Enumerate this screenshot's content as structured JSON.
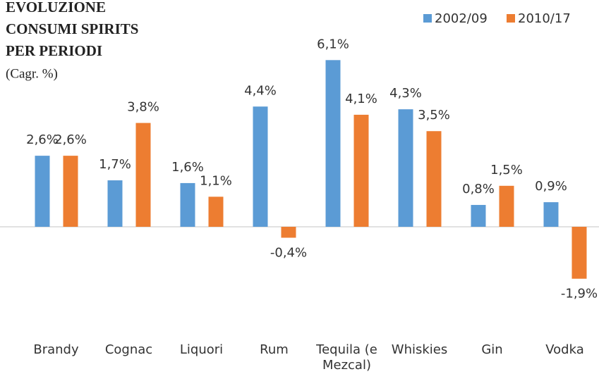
{
  "chart_data": {
    "type": "bar",
    "title": [
      "EVOLUZIONE",
      "CONSUMI SPIRITS",
      "PER PERIODI"
    ],
    "subtitle": "(Cagr. %)",
    "categories": [
      "Brandy",
      "Cognac",
      "Liquori",
      "Rum",
      "Tequila (e Mezcal)",
      "Whiskies",
      "Gin",
      "Vodka"
    ],
    "series": [
      {
        "name": "2002/09",
        "color": "#5b9bd5",
        "values": [
          2.6,
          1.7,
          1.6,
          4.4,
          6.1,
          4.3,
          0.8,
          0.9
        ],
        "value_labels": [
          "2,6%",
          "1,7%",
          "1,6%",
          "4,4%",
          "6,1%",
          "4,3%",
          "0,8%",
          "0,9%"
        ]
      },
      {
        "name": "2010/17",
        "color": "#ed7d31",
        "values": [
          2.6,
          3.8,
          1.1,
          -0.4,
          4.1,
          3.5,
          1.5,
          -1.9
        ],
        "value_labels": [
          "2,6%",
          "3,8%",
          "1,1%",
          "-0,4%",
          "4,1%",
          "3,5%",
          "1,5%",
          "-1,9%"
        ]
      }
    ],
    "ylim": [
      -3,
      7
    ],
    "legend": "top-right"
  }
}
